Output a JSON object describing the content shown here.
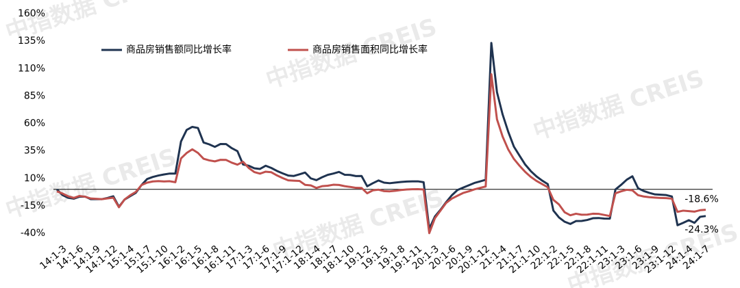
{
  "chart_data": {
    "type": "line",
    "watermark": "中指数据 CREIS",
    "categories": [
      null,
      "14:1-3",
      null,
      null,
      "14:1-6",
      null,
      null,
      "14:1-9",
      null,
      null,
      "14:1-12",
      null,
      null,
      "15:1-4",
      null,
      null,
      "15:1-7",
      null,
      null,
      "15:1-10",
      null,
      null,
      "16:1-2",
      null,
      null,
      "16:1-5",
      null,
      null,
      "16:1-8",
      null,
      null,
      "16:1-11",
      null,
      null,
      "17:1-3",
      null,
      null,
      "17:1-6",
      null,
      null,
      "17:1-9",
      null,
      null,
      "17:1-12",
      null,
      null,
      "18:1-4",
      null,
      null,
      "18:1-7",
      null,
      null,
      "18:1-10",
      null,
      null,
      "19:1-2",
      null,
      null,
      "19:1-5",
      null,
      null,
      "19:1-8",
      null,
      null,
      "19:1-11",
      null,
      null,
      "20:1-3",
      null,
      null,
      "20:1-6",
      null,
      null,
      "20:1-9",
      null,
      null,
      "20:1-12",
      null,
      null,
      "21:1-4",
      null,
      null,
      "21:1-7",
      null,
      null,
      "21:1-10",
      null,
      null,
      "22:1-2",
      null,
      null,
      "22:1-5",
      null,
      null,
      "22:1-8",
      null,
      null,
      "22:1-11",
      null,
      null,
      "23:1-3",
      null,
      null,
      "23:1-6",
      null,
      null,
      "23:1-9",
      null,
      null,
      "23:1-12",
      null,
      null,
      "24:1-4",
      null,
      null,
      "24:1-7"
    ],
    "series": [
      {
        "name": "商品房销售额同比增长率",
        "color": "#1f3350",
        "values": [
          -0.1,
          -5.2,
          -7.7,
          -8.5,
          -6.7,
          -6.6,
          -8.9,
          -8.9,
          -8.9,
          -7.8,
          -6.3,
          -15.8,
          -9.3,
          -6.2,
          -3.1,
          3.9,
          9.4,
          11.3,
          12.6,
          13.6,
          14.4,
          14.4,
          43.6,
          54.1,
          56.9,
          55.9,
          42.7,
          41.0,
          38.7,
          41.3,
          41.2,
          37.5,
          34.8,
          22.7,
          21.5,
          19.2,
          18.6,
          21.5,
          19.5,
          16.8,
          14.6,
          12.6,
          12.2,
          13.7,
          15.3,
          10.0,
          8.4,
          11.0,
          13.2,
          14.4,
          15.9,
          13.3,
          13.1,
          12.1,
          12.2,
          2.8,
          5.6,
          8.1,
          6.1,
          5.6,
          6.2,
          6.7,
          7.1,
          7.3,
          7.3,
          6.5,
          -35.9,
          -24.7,
          -18.6,
          -11.6,
          -5.4,
          -0.6,
          1.6,
          3.7,
          5.8,
          7.2,
          8.7,
          133.4,
          88.5,
          68.2,
          52.4,
          38.9,
          30.7,
          22.6,
          16.6,
          11.8,
          8.0,
          4.8,
          -19.3,
          -25.6,
          -29.5,
          -31.5,
          -28.9,
          -28.8,
          -27.9,
          -26.3,
          -26.1,
          -26.6,
          -26.7,
          -0.1,
          4.1,
          8.8,
          11.9,
          1.1,
          -1.5,
          -3.2,
          -4.6,
          -4.9,
          -5.2,
          -6.5,
          -32.7,
          -30.5,
          -28.1,
          -30.5,
          -25.0,
          -24.3
        ],
        "value_labels": [
          null,
          null,
          null,
          null,
          null,
          null,
          null,
          null,
          null,
          null,
          null,
          null,
          null,
          null,
          null,
          null,
          null,
          null,
          null,
          null,
          null,
          null,
          null,
          null,
          null,
          null,
          null,
          null,
          null,
          null,
          null,
          null,
          null,
          null,
          null,
          null,
          null,
          null,
          null,
          null,
          null,
          null,
          null,
          null,
          null,
          null,
          null,
          null,
          null,
          null,
          null,
          null,
          null,
          null,
          null,
          null,
          null,
          null,
          null,
          null,
          null,
          null,
          null,
          null,
          null,
          null,
          null,
          null,
          null,
          null,
          null,
          null,
          null,
          null,
          null,
          null,
          null,
          null,
          null,
          null,
          null,
          null,
          null,
          null,
          null,
          null,
          null,
          null,
          null,
          null,
          null,
          null,
          null,
          null,
          null,
          null,
          null,
          null,
          null,
          null,
          null,
          null,
          null,
          null,
          null,
          null,
          null,
          null,
          null,
          null,
          null,
          null,
          null,
          null,
          null,
          "-24.3%"
        ]
      },
      {
        "name": "商品房销售面积同比增长率",
        "color": "#c0504d",
        "values": [
          -1.8,
          -3.8,
          -6.3,
          -7.8,
          -6.0,
          -6.7,
          -8.3,
          -8.6,
          -8.9,
          -8.2,
          -7.6,
          -16.3,
          -9.2,
          -5.4,
          -2.3,
          3.9,
          6.1,
          7.2,
          7.5,
          7.2,
          7.4,
          6.5,
          28.2,
          33.1,
          36.5,
          33.2,
          27.9,
          26.4,
          25.5,
          26.9,
          26.8,
          24.3,
          22.5,
          25.1,
          19.5,
          15.7,
          14.3,
          16.1,
          15.6,
          12.7,
          10.3,
          8.2,
          7.9,
          7.7,
          4.1,
          3.6,
          1.3,
          2.9,
          3.3,
          4.2,
          4.0,
          2.9,
          2.2,
          1.4,
          1.3,
          -3.6,
          -0.9,
          -0.3,
          -1.6,
          -1.8,
          -1.3,
          -0.6,
          -0.1,
          0.1,
          0.2,
          -0.1,
          -39.9,
          -26.3,
          -19.3,
          -12.3,
          -8.4,
          -5.8,
          -3.3,
          -1.8,
          0.0,
          1.3,
          2.6,
          104.9,
          63.8,
          48.1,
          36.3,
          27.7,
          21.5,
          15.9,
          11.3,
          7.7,
          4.8,
          1.9,
          -9.6,
          -13.8,
          -20.9,
          -23.6,
          -22.2,
          -23.1,
          -23.0,
          -22.2,
          -22.3,
          -23.3,
          -24.3,
          -3.6,
          -1.8,
          -0.4,
          -0.9,
          -5.3,
          -6.5,
          -7.1,
          -7.5,
          -7.8,
          -8.0,
          -8.5,
          -20.5,
          -19.4,
          -19.8,
          -20.3,
          -19.0,
          -18.6
        ],
        "value_labels": [
          null,
          null,
          null,
          null,
          null,
          null,
          null,
          null,
          null,
          null,
          null,
          null,
          null,
          null,
          null,
          null,
          null,
          null,
          null,
          null,
          null,
          null,
          null,
          null,
          null,
          null,
          null,
          null,
          null,
          null,
          null,
          null,
          null,
          null,
          null,
          null,
          null,
          null,
          null,
          null,
          null,
          null,
          null,
          null,
          null,
          null,
          null,
          null,
          null,
          null,
          null,
          null,
          null,
          null,
          null,
          null,
          null,
          null,
          null,
          null,
          null,
          null,
          null,
          null,
          null,
          null,
          null,
          null,
          null,
          null,
          null,
          null,
          null,
          null,
          null,
          null,
          null,
          null,
          null,
          null,
          null,
          null,
          null,
          null,
          null,
          null,
          null,
          null,
          null,
          null,
          null,
          null,
          null,
          null,
          null,
          null,
          null,
          null,
          null,
          null,
          null,
          null,
          null,
          null,
          null,
          null,
          null,
          null,
          null,
          null,
          null,
          null,
          null,
          null,
          null,
          "-18.6%"
        ]
      }
    ],
    "ylim": [
      -40,
      160
    ],
    "yticks": [
      {
        "value": 160,
        "label": "160%"
      },
      {
        "value": 135,
        "label": "135%"
      },
      {
        "value": 110,
        "label": "110%"
      },
      {
        "value": 85,
        "label": "85%"
      },
      {
        "value": 60,
        "label": "60%"
      },
      {
        "value": 35,
        "label": "35%"
      },
      {
        "value": 10,
        "label": "10%"
      },
      {
        "value": -15,
        "label": "-15%"
      },
      {
        "value": -40,
        "label": "-40%"
      }
    ],
    "grid": false
  }
}
